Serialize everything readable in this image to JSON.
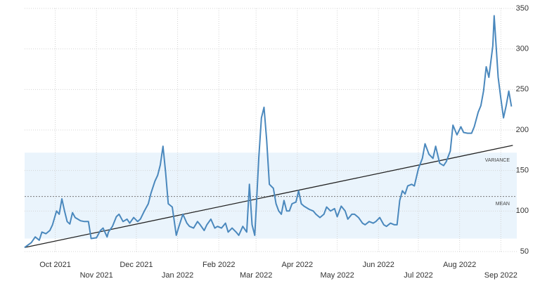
{
  "chart_data": {
    "type": "line",
    "xlim": [
      0,
      370
    ],
    "ylim": [
      50,
      350
    ],
    "yticks": [
      50,
      100,
      150,
      200,
      250,
      300,
      350
    ],
    "xticks": [
      {
        "value": 23,
        "label": "Oct 2021"
      },
      {
        "value": 54,
        "label": "Nov 2021"
      },
      {
        "value": 84,
        "label": "Dec 2021"
      },
      {
        "value": 115,
        "label": "Jan 2022"
      },
      {
        "value": 146,
        "label": "Feb 2022"
      },
      {
        "value": 174,
        "label": "Mar 2022"
      },
      {
        "value": 205,
        "label": "Apr 2022"
      },
      {
        "value": 235,
        "label": "May 2022"
      },
      {
        "value": 266,
        "label": "Jun 2022"
      },
      {
        "value": 296,
        "label": "Jul 2022"
      },
      {
        "value": 327,
        "label": "Aug 2022"
      },
      {
        "value": 358,
        "label": "Sep 2022"
      }
    ],
    "grid": true,
    "x": [
      0,
      5,
      8,
      11,
      13,
      16,
      19,
      21,
      24,
      26,
      28,
      30,
      32,
      34,
      36,
      38,
      40,
      42,
      45,
      48,
      50,
      54,
      57,
      59,
      62,
      63,
      66,
      69,
      71,
      74,
      77,
      79,
      82,
      85,
      87,
      90,
      93,
      95,
      98,
      100,
      102,
      104,
      106,
      108,
      111,
      114,
      116,
      119,
      122,
      124,
      127,
      130,
      132,
      135,
      137,
      140,
      143,
      145,
      148,
      151,
      153,
      156,
      159,
      161,
      164,
      167,
      169,
      171,
      173,
      174,
      176,
      178,
      180,
      182,
      184,
      187,
      189,
      191,
      193,
      195,
      197,
      199,
      201,
      204,
      206,
      208,
      210,
      214,
      217,
      219,
      222,
      225,
      227,
      230,
      233,
      235,
      238,
      241,
      243,
      246,
      248,
      251,
      254,
      256,
      259,
      262,
      264,
      267,
      270,
      272,
      275,
      278,
      280,
      282,
      284,
      286,
      288,
      291,
      293,
      296,
      299,
      301,
      304,
      307,
      309,
      312,
      315,
      317,
      320,
      322,
      325,
      328,
      330,
      333,
      336,
      338,
      341,
      343,
      345,
      347,
      349,
      352,
      353,
      356,
      358,
      360,
      362,
      364,
      366
    ],
    "series": [
      {
        "color": "#4a88bd",
        "values": [
          55,
          61,
          68,
          64,
          74,
          72,
          76,
          83,
          100,
          96,
          115,
          100,
          87,
          84,
          98,
          92,
          90,
          88,
          87,
          87,
          66,
          67,
          76,
          79,
          68,
          74,
          81,
          93,
          96,
          87,
          90,
          85,
          92,
          87,
          90,
          100,
          109,
          122,
          137,
          144,
          157,
          180,
          148,
          109,
          105,
          70,
          81,
          96,
          85,
          81,
          79,
          87,
          83,
          76,
          83,
          90,
          79,
          81,
          79,
          85,
          74,
          79,
          74,
          70,
          81,
          74,
          133,
          83,
          70,
          100,
          165,
          215,
          228,
          187,
          133,
          128,
          109,
          100,
          96,
          113,
          100,
          100,
          109,
          111,
          125,
          109,
          106,
          102,
          100,
          96,
          92,
          96,
          105,
          100,
          103,
          93,
          106,
          100,
          90,
          96,
          96,
          92,
          85,
          83,
          87,
          85,
          87,
          92,
          83,
          81,
          85,
          83,
          83,
          113,
          125,
          121,
          131,
          133,
          131,
          152,
          165,
          183,
          170,
          165,
          180,
          159,
          156,
          161,
          174,
          206,
          194,
          204,
          197,
          196,
          196,
          204,
          222,
          230,
          248,
          278,
          265,
          304,
          341,
          265,
          239,
          215,
          230,
          248,
          229
        ]
      }
    ],
    "variance_band": [
      66,
      172
    ],
    "mean": 118,
    "trend": {
      "x": [
        0,
        367
      ],
      "values": [
        55,
        181
      ]
    },
    "annotations": [
      "VARIANCE",
      "MEAN"
    ]
  }
}
